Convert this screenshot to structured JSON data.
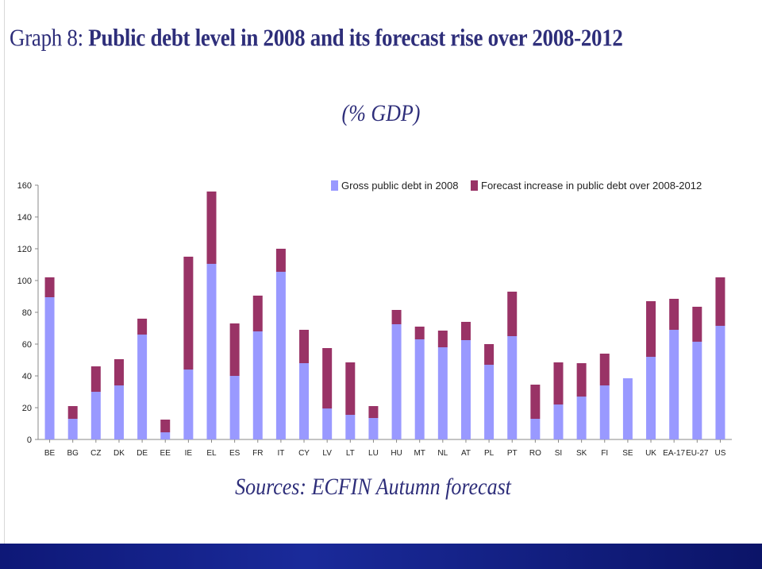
{
  "header": {
    "title_lead": "Graph 8: ",
    "title_main": "Public debt level in 2008 and its forecast rise over 2008-2012",
    "subtitle": "(% GDP)"
  },
  "footer": {
    "sources": "Sources: ECFIN Autumn forecast"
  },
  "colors": {
    "base": "#9999ff",
    "increase": "#993366",
    "text": "#2e2e7a",
    "footer_bar": "#12207f"
  },
  "chart_data": {
    "type": "bar",
    "stacked": true,
    "categories": [
      "BE",
      "BG",
      "CZ",
      "DK",
      "DE",
      "EE",
      "IE",
      "EL",
      "ES",
      "FR",
      "IT",
      "CY",
      "LV",
      "LT",
      "LU",
      "HU",
      "MT",
      "NL",
      "AT",
      "PL",
      "PT",
      "RO",
      "SI",
      "SK",
      "FI",
      "SE",
      "UK",
      "EA-17",
      "EU-27",
      "US"
    ],
    "series": [
      {
        "name": "Gross public debt in 2008",
        "color": "#9999ff",
        "values": [
          89.5,
          13,
          30,
          34,
          66,
          4.5,
          44,
          110.5,
          40,
          68,
          105.5,
          48,
          19.5,
          15.5,
          13.5,
          72.5,
          63,
          58,
          62.5,
          47,
          65,
          13,
          22,
          27,
          34,
          38.5,
          52,
          69,
          61.5,
          71.5
        ]
      },
      {
        "name": "Forecast increase in public debt over 2008-2012",
        "color": "#993366",
        "values": [
          12.5,
          8,
          16,
          16.5,
          10,
          8,
          71,
          45.5,
          33,
          22.5,
          14.5,
          21,
          38,
          33,
          7.5,
          9,
          8,
          10.5,
          11.5,
          13,
          28,
          21.5,
          26.5,
          21,
          20,
          0,
          35,
          19.5,
          22,
          30.5
        ]
      }
    ],
    "ylim": [
      0,
      160
    ],
    "yticks": [
      0,
      20,
      40,
      60,
      80,
      100,
      120,
      140,
      160
    ],
    "grid": false,
    "legend_position": "top"
  }
}
